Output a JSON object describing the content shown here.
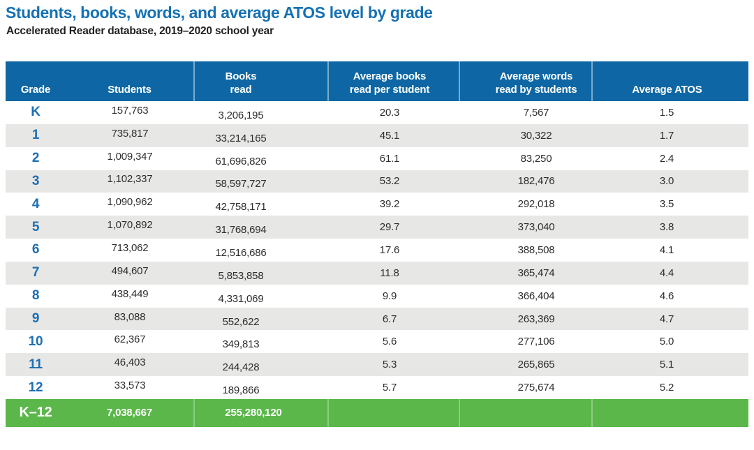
{
  "title": "Students, books, words, and average ATOS level by grade",
  "subtitle": "Accelerated Reader database, 2019–2020 school year",
  "colors": {
    "title_blue": "#1571b3",
    "header_blue": "#0e67a4",
    "grade_blue": "#1c6fb2",
    "stripe_gray": "#e7e7e6",
    "total_green": "#5bb74a",
    "value_text": "#2e2d2c"
  },
  "table": {
    "columns": [
      {
        "top": "",
        "bottom": "Grade"
      },
      {
        "top": "",
        "bottom": "Students"
      },
      {
        "top": "Books",
        "bottom": "read"
      },
      {
        "top": "Average books",
        "bottom": "read per student"
      },
      {
        "top": "Average words",
        "bottom": "read by students"
      },
      {
        "top": "",
        "bottom": "Average ATOS"
      }
    ],
    "rows": [
      [
        "K",
        "157,763",
        "3,206,195",
        "20.3",
        "7,567",
        "1.5"
      ],
      [
        "1",
        "735,817",
        "33,214,165",
        "45.1",
        "30,322",
        "1.7"
      ],
      [
        "2",
        "1,009,347",
        "61,696,826",
        "61.1",
        "83,250",
        "2.4"
      ],
      [
        "3",
        "1,102,337",
        "58,597,727",
        "53.2",
        "182,476",
        "3.0"
      ],
      [
        "4",
        "1,090,962",
        "42,758,171",
        "39.2",
        "292,018",
        "3.5"
      ],
      [
        "5",
        "1,070,892",
        "31,768,694",
        "29.7",
        "373,040",
        "3.8"
      ],
      [
        "6",
        "713,062",
        "12,516,686",
        "17.6",
        "388,508",
        "4.1"
      ],
      [
        "7",
        "494,607",
        "5,853,858",
        "11.8",
        "365,474",
        "4.4"
      ],
      [
        "8",
        "438,449",
        "4,331,069",
        "9.9",
        "366,404",
        "4.6"
      ],
      [
        "9",
        "83,088",
        "552,622",
        "6.7",
        "263,369",
        "4.7"
      ],
      [
        "10",
        "62,367",
        "349,813",
        "5.6",
        "277,106",
        "5.0"
      ],
      [
        "11",
        "46,403",
        "244,428",
        "5.3",
        "265,865",
        "5.1"
      ],
      [
        "12",
        "33,573",
        "189,866",
        "5.7",
        "275,674",
        "5.2"
      ]
    ],
    "total": {
      "grade": "K–12",
      "students": "7,038,667",
      "books_read": "255,280,120"
    }
  },
  "chart_data": {
    "type": "table",
    "title": "Students, books, words, and average ATOS level by grade",
    "subtitle": "Accelerated Reader database, 2019–2020 school year",
    "columns": [
      "Grade",
      "Students",
      "Books read",
      "Average books read per student",
      "Average words read by students",
      "Average ATOS"
    ],
    "rows": [
      [
        "K",
        157763,
        3206195,
        20.3,
        7567,
        1.5
      ],
      [
        "1",
        735817,
        33214165,
        45.1,
        30322,
        1.7
      ],
      [
        "2",
        1009347,
        61696826,
        61.1,
        83250,
        2.4
      ],
      [
        "3",
        1102337,
        58597727,
        53.2,
        182476,
        3.0
      ],
      [
        "4",
        1090962,
        42758171,
        39.2,
        292018,
        3.5
      ],
      [
        "5",
        1070892,
        31768694,
        29.7,
        373040,
        3.8
      ],
      [
        "6",
        713062,
        12516686,
        17.6,
        388508,
        4.1
      ],
      [
        "7",
        494607,
        5853858,
        11.8,
        365474,
        4.4
      ],
      [
        "8",
        438449,
        4331069,
        9.9,
        366404,
        4.6
      ],
      [
        "9",
        83088,
        552622,
        6.7,
        263369,
        4.7
      ],
      [
        "10",
        62367,
        349813,
        5.6,
        277106,
        5.0
      ],
      [
        "11",
        46403,
        244428,
        5.3,
        265865,
        5.1
      ],
      [
        "12",
        33573,
        189866,
        5.7,
        275674,
        5.2
      ]
    ],
    "total_row": [
      "K–12",
      7038667,
      255280120,
      null,
      null,
      null
    ],
    "layout_hints": {
      "striped_rows": true,
      "total_row_color": "green",
      "header_color": "blue"
    }
  }
}
